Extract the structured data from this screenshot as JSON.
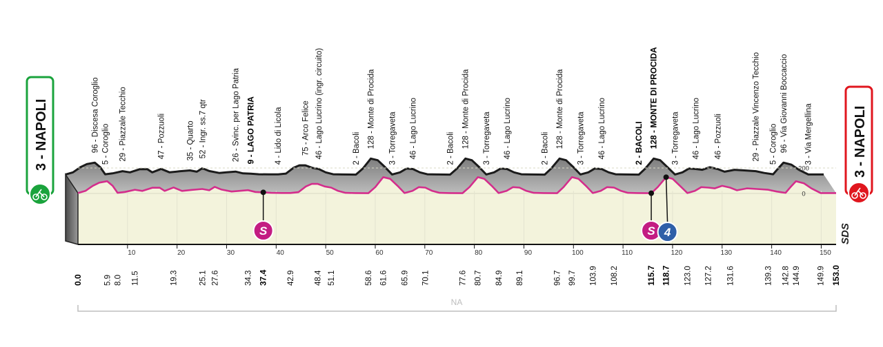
{
  "chart_data": {
    "type": "area",
    "start": {
      "label": "3 - NAPOLI",
      "color": "#1aa33c"
    },
    "finish": {
      "label": "3 - NAPOLI",
      "color": "#e0161e"
    },
    "sponsor": "SDS",
    "xlabel": "NA",
    "xlim": [
      0,
      153
    ],
    "ylim": [
      -60,
      340
    ],
    "x_ticks": [
      10,
      20,
      30,
      40,
      50,
      60,
      70,
      80,
      90,
      100,
      110,
      120,
      130,
      140,
      150
    ],
    "y_ticks": [
      0,
      200
    ],
    "waypoints": [
      {
        "km": "0.0",
        "x": 0.0,
        "name": "3 - NAPOLI",
        "bold": true,
        "label": false
      },
      {
        "km": "5.9",
        "x": 5.9,
        "name": "96 - Discesa Coroglio"
      },
      {
        "km": "8.0",
        "x": 8.0,
        "name": "5 - Coroglio"
      },
      {
        "km": "11.5",
        "x": 11.5,
        "name": "29 - Piazzale Tecchio"
      },
      {
        "km": "19.3",
        "x": 19.3,
        "name": "47 - Pozzuoli"
      },
      {
        "km": "25.1",
        "x": 25.1,
        "name": "35 - Quarto"
      },
      {
        "km": "27.6",
        "x": 27.6,
        "name": "52 - Ingr. ss.7 qtr"
      },
      {
        "km": "34.3",
        "x": 34.3,
        "name": "26 - Svinc. per Lago Patria"
      },
      {
        "km": "37.4",
        "x": 37.4,
        "name": "9 - LAGO PATRIA",
        "bold": true
      },
      {
        "km": "42.9",
        "x": 42.9,
        "name": "4 - Lido di Licola"
      },
      {
        "km": "48.4",
        "x": 48.4,
        "name": "75 - Arco Felice"
      },
      {
        "km": "51.1",
        "x": 51.1,
        "name": "46 - Lago Lucrino (ingr. circuito)"
      },
      {
        "km": "58.6",
        "x": 58.6,
        "name": "2 - Bacoli"
      },
      {
        "km": "61.6",
        "x": 61.6,
        "name": "128 - Monte di Procida"
      },
      {
        "km": "65.9",
        "x": 65.9,
        "name": "3 - Torregaveta"
      },
      {
        "km": "70.1",
        "x": 70.1,
        "name": "46 - Lago Lucrino"
      },
      {
        "km": "77.6",
        "x": 77.6,
        "name": "2 - Bacoli"
      },
      {
        "km": "80.7",
        "x": 80.7,
        "name": "128 - Monte di Procida"
      },
      {
        "km": "84.9",
        "x": 84.9,
        "name": "3 - Torregaveta"
      },
      {
        "km": "89.1",
        "x": 89.1,
        "name": "46 - Lago Lucrino"
      },
      {
        "km": "96.7",
        "x": 96.7,
        "name": "2 - Bacoli"
      },
      {
        "km": "99.7",
        "x": 99.7,
        "name": "128 - Monte di Procida"
      },
      {
        "km": "103.9",
        "x": 103.9,
        "name": "3 - Torregaveta"
      },
      {
        "km": "108.2",
        "x": 108.2,
        "name": "46 - Lago Lucrino"
      },
      {
        "km": "115.7",
        "x": 115.7,
        "name": "2 - BACOLI",
        "bold": true
      },
      {
        "km": "118.7",
        "x": 118.7,
        "name": "128 - MONTE DI PROCIDA",
        "bold": true
      },
      {
        "km": "123.0",
        "x": 123.0,
        "name": "3 - Torregaveta"
      },
      {
        "km": "127.2",
        "x": 127.2,
        "name": "46 - Lago Lucrino"
      },
      {
        "km": "131.6",
        "x": 131.6,
        "name": "46 - Pozzuoli"
      },
      {
        "km": "139.3",
        "x": 139.3,
        "name": "29 - Piazzale Vincenzo Tecchio"
      },
      {
        "km": "142.8",
        "x": 142.8,
        "name": "5 - Coroglio"
      },
      {
        "km": "144.9",
        "x": 144.9,
        "name": "96 - Via Giovanni Boccaccio"
      },
      {
        "km": "149.9",
        "x": 149.9,
        "name": "3 - Via Mergellina"
      },
      {
        "km": "153.0",
        "x": 153.0,
        "name": "3 - NAPOLI",
        "bold": true,
        "label": false
      }
    ],
    "profile": [
      [
        0,
        3
      ],
      [
        1.5,
        20
      ],
      [
        3,
        60
      ],
      [
        4.3,
        85
      ],
      [
        5.9,
        96
      ],
      [
        7,
        60
      ],
      [
        8,
        5
      ],
      [
        9.5,
        12
      ],
      [
        11.5,
        29
      ],
      [
        13,
        20
      ],
      [
        15,
        45
      ],
      [
        16.5,
        45
      ],
      [
        17.5,
        20
      ],
      [
        19.3,
        47
      ],
      [
        21,
        20
      ],
      [
        23,
        28
      ],
      [
        25.1,
        35
      ],
      [
        26.5,
        25
      ],
      [
        27.6,
        52
      ],
      [
        29,
        30
      ],
      [
        31,
        15
      ],
      [
        32.5,
        20
      ],
      [
        34.3,
        26
      ],
      [
        35.8,
        12
      ],
      [
        37.4,
        9
      ],
      [
        39,
        5
      ],
      [
        41,
        4
      ],
      [
        42.9,
        4
      ],
      [
        44.5,
        10
      ],
      [
        46,
        55
      ],
      [
        47.2,
        75
      ],
      [
        48.4,
        75
      ],
      [
        49.8,
        55
      ],
      [
        51.1,
        46
      ],
      [
        52.5,
        20
      ],
      [
        54,
        5
      ],
      [
        56,
        3
      ],
      [
        58.6,
        2
      ],
      [
        60,
        50
      ],
      [
        61.6,
        128
      ],
      [
        63,
        115
      ],
      [
        64.5,
        60
      ],
      [
        65.9,
        3
      ],
      [
        67.5,
        20
      ],
      [
        68.8,
        50
      ],
      [
        70.1,
        46
      ],
      [
        71.5,
        20
      ],
      [
        73,
        5
      ],
      [
        75,
        3
      ],
      [
        77.6,
        2
      ],
      [
        79,
        50
      ],
      [
        80.7,
        128
      ],
      [
        82,
        115
      ],
      [
        83.5,
        60
      ],
      [
        84.9,
        3
      ],
      [
        86.5,
        20
      ],
      [
        87.8,
        50
      ],
      [
        89.1,
        46
      ],
      [
        90.5,
        20
      ],
      [
        92,
        5
      ],
      [
        94,
        3
      ],
      [
        96.7,
        2
      ],
      [
        98,
        50
      ],
      [
        99.7,
        128
      ],
      [
        101,
        115
      ],
      [
        102.5,
        60
      ],
      [
        103.9,
        3
      ],
      [
        105.5,
        20
      ],
      [
        106.8,
        50
      ],
      [
        108.2,
        46
      ],
      [
        109.6,
        20
      ],
      [
        111,
        5
      ],
      [
        113,
        3
      ],
      [
        115.7,
        2
      ],
      [
        117,
        50
      ],
      [
        118.7,
        128
      ],
      [
        120,
        115
      ],
      [
        121.5,
        60
      ],
      [
        123.0,
        3
      ],
      [
        124.5,
        20
      ],
      [
        125.8,
        50
      ],
      [
        127.2,
        46
      ],
      [
        128.5,
        40
      ],
      [
        130,
        60
      ],
      [
        131.6,
        46
      ],
      [
        133,
        25
      ],
      [
        135,
        40
      ],
      [
        137,
        35
      ],
      [
        139.3,
        29
      ],
      [
        141,
        15
      ],
      [
        142.8,
        5
      ],
      [
        143.8,
        50
      ],
      [
        144.9,
        96
      ],
      [
        146.5,
        80
      ],
      [
        148,
        40
      ],
      [
        149.9,
        3
      ],
      [
        151.5,
        3
      ],
      [
        153,
        3
      ]
    ],
    "markers": [
      {
        "type": "sprint",
        "label": "S",
        "km": 37.4,
        "color": "#c31c82"
      },
      {
        "type": "sprint",
        "label": "S",
        "km": 115.7,
        "color": "#c31c82"
      },
      {
        "type": "climb",
        "label": "4",
        "km": 118.7,
        "color": "#2f5fa8"
      }
    ]
  }
}
